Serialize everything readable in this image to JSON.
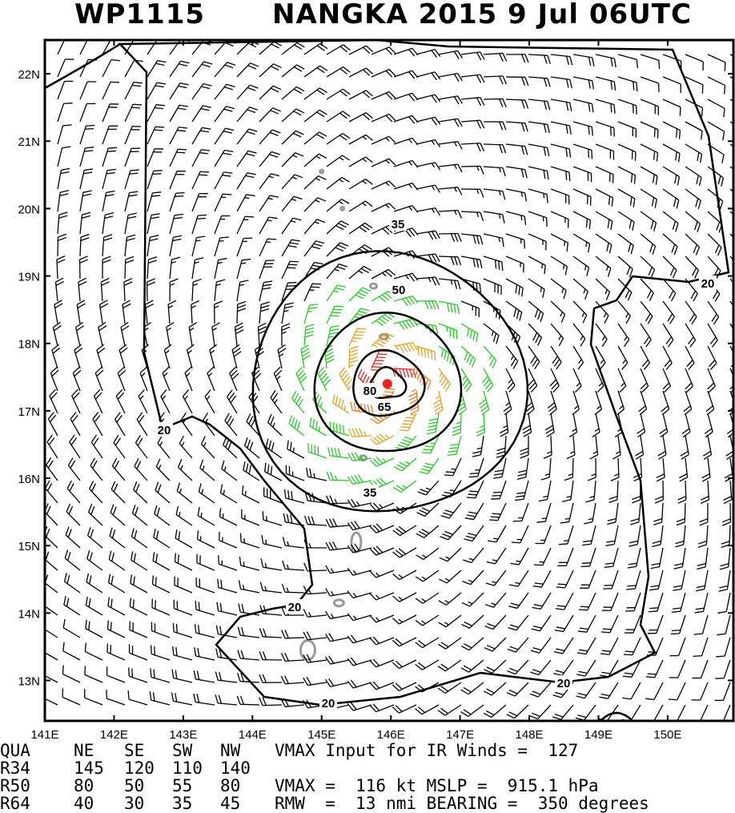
{
  "title": {
    "storm_id": "WP1115",
    "storm_name_year": "NANGKA 2015",
    "datetime": "9 Jul 06UTC"
  },
  "map": {
    "lat_min": 12.4,
    "lat_max": 22.5,
    "lon_min": 141.0,
    "lon_max": 150.95,
    "lat_ticks": [
      "13N",
      "14N",
      "15N",
      "16N",
      "17N",
      "18N",
      "19N",
      "20N",
      "21N",
      "22N"
    ],
    "lat_tick_values": [
      13,
      14,
      15,
      16,
      17,
      18,
      19,
      20,
      21,
      22
    ],
    "lon_ticks": [
      "141E",
      "142E",
      "143E",
      "144E",
      "145E",
      "146E",
      "147E",
      "148E",
      "149E",
      "150E"
    ],
    "lon_tick_values": [
      141,
      142,
      143,
      144,
      145,
      146,
      147,
      148,
      149,
      150
    ],
    "center_lat": 17.4,
    "center_lon": 145.95,
    "contour_labels": [
      "20",
      "20",
      "20",
      "20",
      "20",
      "35",
      "35",
      "50",
      "65",
      "80"
    ],
    "colors": {
      "calm": "#000000",
      "gale": "#22cc22",
      "storm": "#e8a020",
      "hurricane_low": "#f07820",
      "hurricane_high": "#ee2222",
      "center": "#ee2222",
      "land": "#999999"
    }
  },
  "stats": {
    "header": {
      "qua": "QUA",
      "ne": "NE",
      "se": "SE",
      "sw": "SW",
      "nw": "NW",
      "vmax_input": "VMAX Input for IR Winds =  127"
    },
    "r34": {
      "label": "R34",
      "ne": "145",
      "se": "120",
      "sw": "110",
      "nw": "140"
    },
    "r50": {
      "label": "R50",
      "ne": "80",
      "se": "50",
      "sw": "55",
      "nw": "80",
      "extra": "VMAX =  116 kt MSLP =  915.1 hPa"
    },
    "r64": {
      "label": "R64",
      "ne": "40",
      "se": "30",
      "sw": "35",
      "nw": "45",
      "extra": "RMW  =  13 nmi BEARING =  350 degrees"
    }
  }
}
